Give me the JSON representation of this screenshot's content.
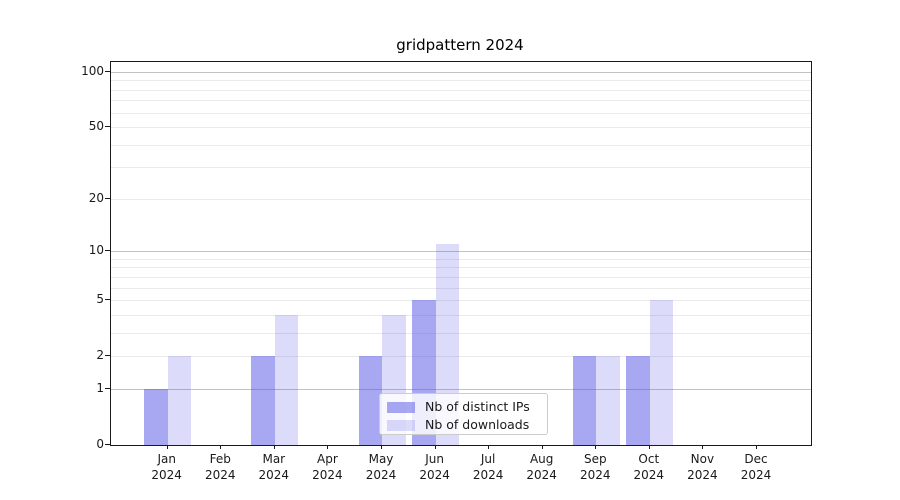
{
  "title": "gridpattern 2024",
  "chart_data": {
    "type": "bar",
    "title": "gridpattern 2024",
    "categories": [
      "Jan",
      "Feb",
      "Mar",
      "Apr",
      "May",
      "Jun",
      "Jul",
      "Aug",
      "Sep",
      "Oct",
      "Nov",
      "Dec"
    ],
    "x_year": "2024",
    "series": [
      {
        "name": "Nb of distinct IPs",
        "color": "rgba(82,82,230,0.5)",
        "values": [
          1,
          0,
          2,
          0,
          2,
          5,
          0,
          0,
          2,
          2,
          0,
          0
        ]
      },
      {
        "name": "Nb of downloads",
        "color": "rgba(82,82,230,0.2)",
        "values": [
          2,
          0,
          4,
          0,
          4,
          11,
          0,
          0,
          2,
          5,
          0,
          0
        ]
      }
    ],
    "yscale": "log1p",
    "ylim": [
      0,
      113
    ],
    "y_ticks": [
      0,
      1,
      2,
      5,
      10,
      20,
      50,
      100
    ],
    "grid_major": [
      1,
      10,
      100
    ],
    "grid_minor": [
      2,
      3,
      4,
      5,
      6,
      7,
      8,
      9,
      20,
      30,
      40,
      50,
      60,
      70,
      80,
      90
    ],
    "grid": true,
    "legend_position": "lower center",
    "xlabel": "",
    "ylabel": ""
  },
  "legend": {
    "items": [
      "Nb of distinct IPs",
      "Nb of downloads"
    ]
  },
  "colors": {
    "bar_distinct_ips": "rgba(82,82,230,0.5)",
    "bar_downloads": "rgba(82,82,230,0.2)",
    "grid_major": "#c2c2c2",
    "grid_minor": "#eaeaea",
    "axis": "#1a1a1a",
    "background": "#ffffff"
  }
}
